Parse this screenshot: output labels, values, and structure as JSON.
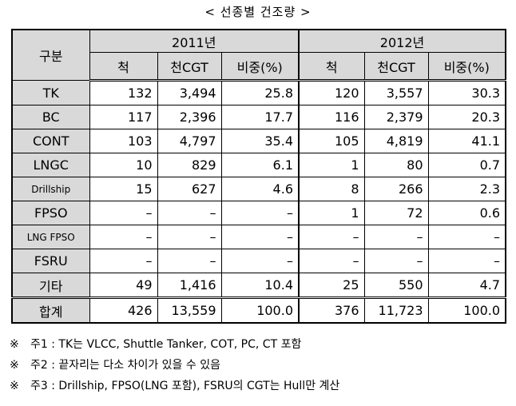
{
  "title": "< 선종별 건조량 >",
  "table": {
    "header": {
      "category": "구분",
      "years": [
        "2011년",
        "2012년"
      ],
      "columns": [
        "척",
        "천CGT",
        "비중(%)",
        "척",
        "천CGT",
        "비중(%)"
      ]
    },
    "rows": [
      {
        "label": "TK",
        "cells": [
          "132",
          "3,494",
          "25.8",
          "120",
          "3,557",
          "30.3"
        ]
      },
      {
        "label": "BC",
        "cells": [
          "117",
          "2,396",
          "17.7",
          "116",
          "2,379",
          "20.3"
        ]
      },
      {
        "label": "CONT",
        "cells": [
          "103",
          "4,797",
          "35.4",
          "105",
          "4,819",
          "41.1"
        ]
      },
      {
        "label": "LNGC",
        "cells": [
          "10",
          "829",
          "6.1",
          "1",
          "80",
          "0.7"
        ]
      },
      {
        "label": "Drillship",
        "cells": [
          "15",
          "627",
          "4.6",
          "8",
          "266",
          "2.3"
        ]
      },
      {
        "label": "FPSO",
        "cells": [
          "–",
          "–",
          "–",
          "1",
          "72",
          "0.6"
        ]
      },
      {
        "label": "LNG FPSO",
        "cells": [
          "–",
          "–",
          "–",
          "–",
          "–",
          "–"
        ]
      },
      {
        "label": "FSRU",
        "cells": [
          "–",
          "–",
          "–",
          "–",
          "–",
          "–"
        ]
      },
      {
        "label": "기타",
        "cells": [
          "49",
          "1,416",
          "10.4",
          "25",
          "550",
          "4.7"
        ]
      },
      {
        "label": "합계",
        "cells": [
          "426",
          "13,559",
          "100.0",
          "376",
          "11,723",
          "100.0"
        ]
      }
    ]
  },
  "notes": [
    {
      "mark": "※",
      "text": "주1 : TK는 VLCC, Shuttle Tanker, COT, PC, CT 포함"
    },
    {
      "mark": "※",
      "text": "주2 : 끝자리는 다소 차이가 있을 수 있음"
    },
    {
      "mark": "※",
      "text": "주3 : Drillship, FPSO(LNG 포함), FSRU의 CGT는 Hull만 계산"
    }
  ]
}
